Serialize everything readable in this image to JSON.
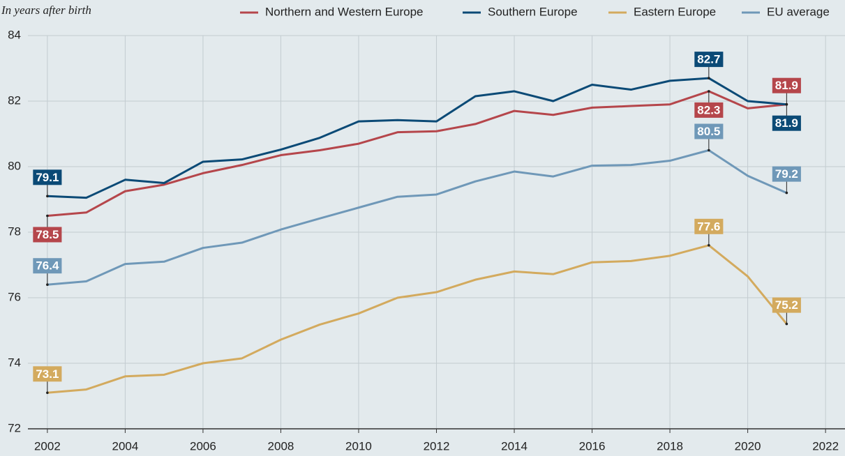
{
  "chart_data": {
    "type": "line",
    "subtitle": "In years after birth",
    "x": [
      2002,
      2003,
      2004,
      2005,
      2006,
      2007,
      2008,
      2009,
      2010,
      2011,
      2012,
      2013,
      2014,
      2015,
      2016,
      2017,
      2018,
      2019,
      2020,
      2021
    ],
    "series": [
      {
        "name": "Northern and Western Europe",
        "color": "#b5464b",
        "values": [
          78.5,
          78.6,
          79.25,
          79.45,
          79.8,
          80.05,
          80.35,
          80.5,
          80.7,
          81.05,
          81.08,
          81.3,
          81.7,
          81.58,
          81.8,
          81.85,
          81.9,
          82.3,
          81.78,
          81.9
        ],
        "value_labels": [
          "78.5",
          null,
          null,
          null,
          null,
          null,
          null,
          null,
          null,
          null,
          null,
          null,
          null,
          null,
          null,
          null,
          null,
          "82.3",
          null,
          "81.9"
        ]
      },
      {
        "name": "Southern Europe",
        "color": "#0b4a76",
        "values": [
          79.1,
          79.05,
          79.6,
          79.5,
          80.15,
          80.22,
          80.52,
          80.88,
          81.38,
          81.42,
          81.38,
          82.15,
          82.3,
          82.0,
          82.5,
          82.35,
          82.62,
          82.7,
          82.0,
          81.9
        ],
        "value_labels": [
          "79.1",
          null,
          null,
          null,
          null,
          null,
          null,
          null,
          null,
          null,
          null,
          null,
          null,
          null,
          null,
          null,
          null,
          "82.7",
          null,
          "81.9"
        ]
      },
      {
        "name": "Eastern Europe",
        "color": "#d3aa5e",
        "values": [
          73.1,
          73.2,
          73.6,
          73.65,
          74.0,
          74.15,
          74.72,
          75.18,
          75.52,
          76.0,
          76.17,
          76.55,
          76.8,
          76.72,
          77.08,
          77.12,
          77.28,
          77.6,
          76.65,
          75.2
        ],
        "value_labels": [
          "73.1",
          null,
          null,
          null,
          null,
          null,
          null,
          null,
          null,
          null,
          null,
          null,
          null,
          null,
          null,
          null,
          null,
          "77.6",
          null,
          "75.2"
        ]
      },
      {
        "name": "EU average",
        "color": "#6f98b8",
        "values": [
          76.4,
          76.5,
          77.03,
          77.1,
          77.52,
          77.68,
          78.08,
          78.42,
          78.75,
          79.08,
          79.15,
          79.55,
          79.85,
          79.7,
          80.03,
          80.05,
          80.18,
          80.5,
          79.72,
          79.2
        ],
        "value_labels": [
          "76.4",
          null,
          null,
          null,
          null,
          null,
          null,
          null,
          null,
          null,
          null,
          null,
          null,
          null,
          null,
          null,
          null,
          "80.5",
          null,
          "79.2"
        ]
      }
    ],
    "xlim": [
      2001.5,
      2022.5
    ],
    "xticks": [
      2002,
      2004,
      2006,
      2008,
      2010,
      2012,
      2014,
      2016,
      2018,
      2020,
      2022
    ],
    "ylim": [
      72,
      84
    ],
    "yticks": [
      72,
      74,
      76,
      78,
      80,
      82,
      84
    ],
    "grid": true,
    "legend": "top-right"
  }
}
